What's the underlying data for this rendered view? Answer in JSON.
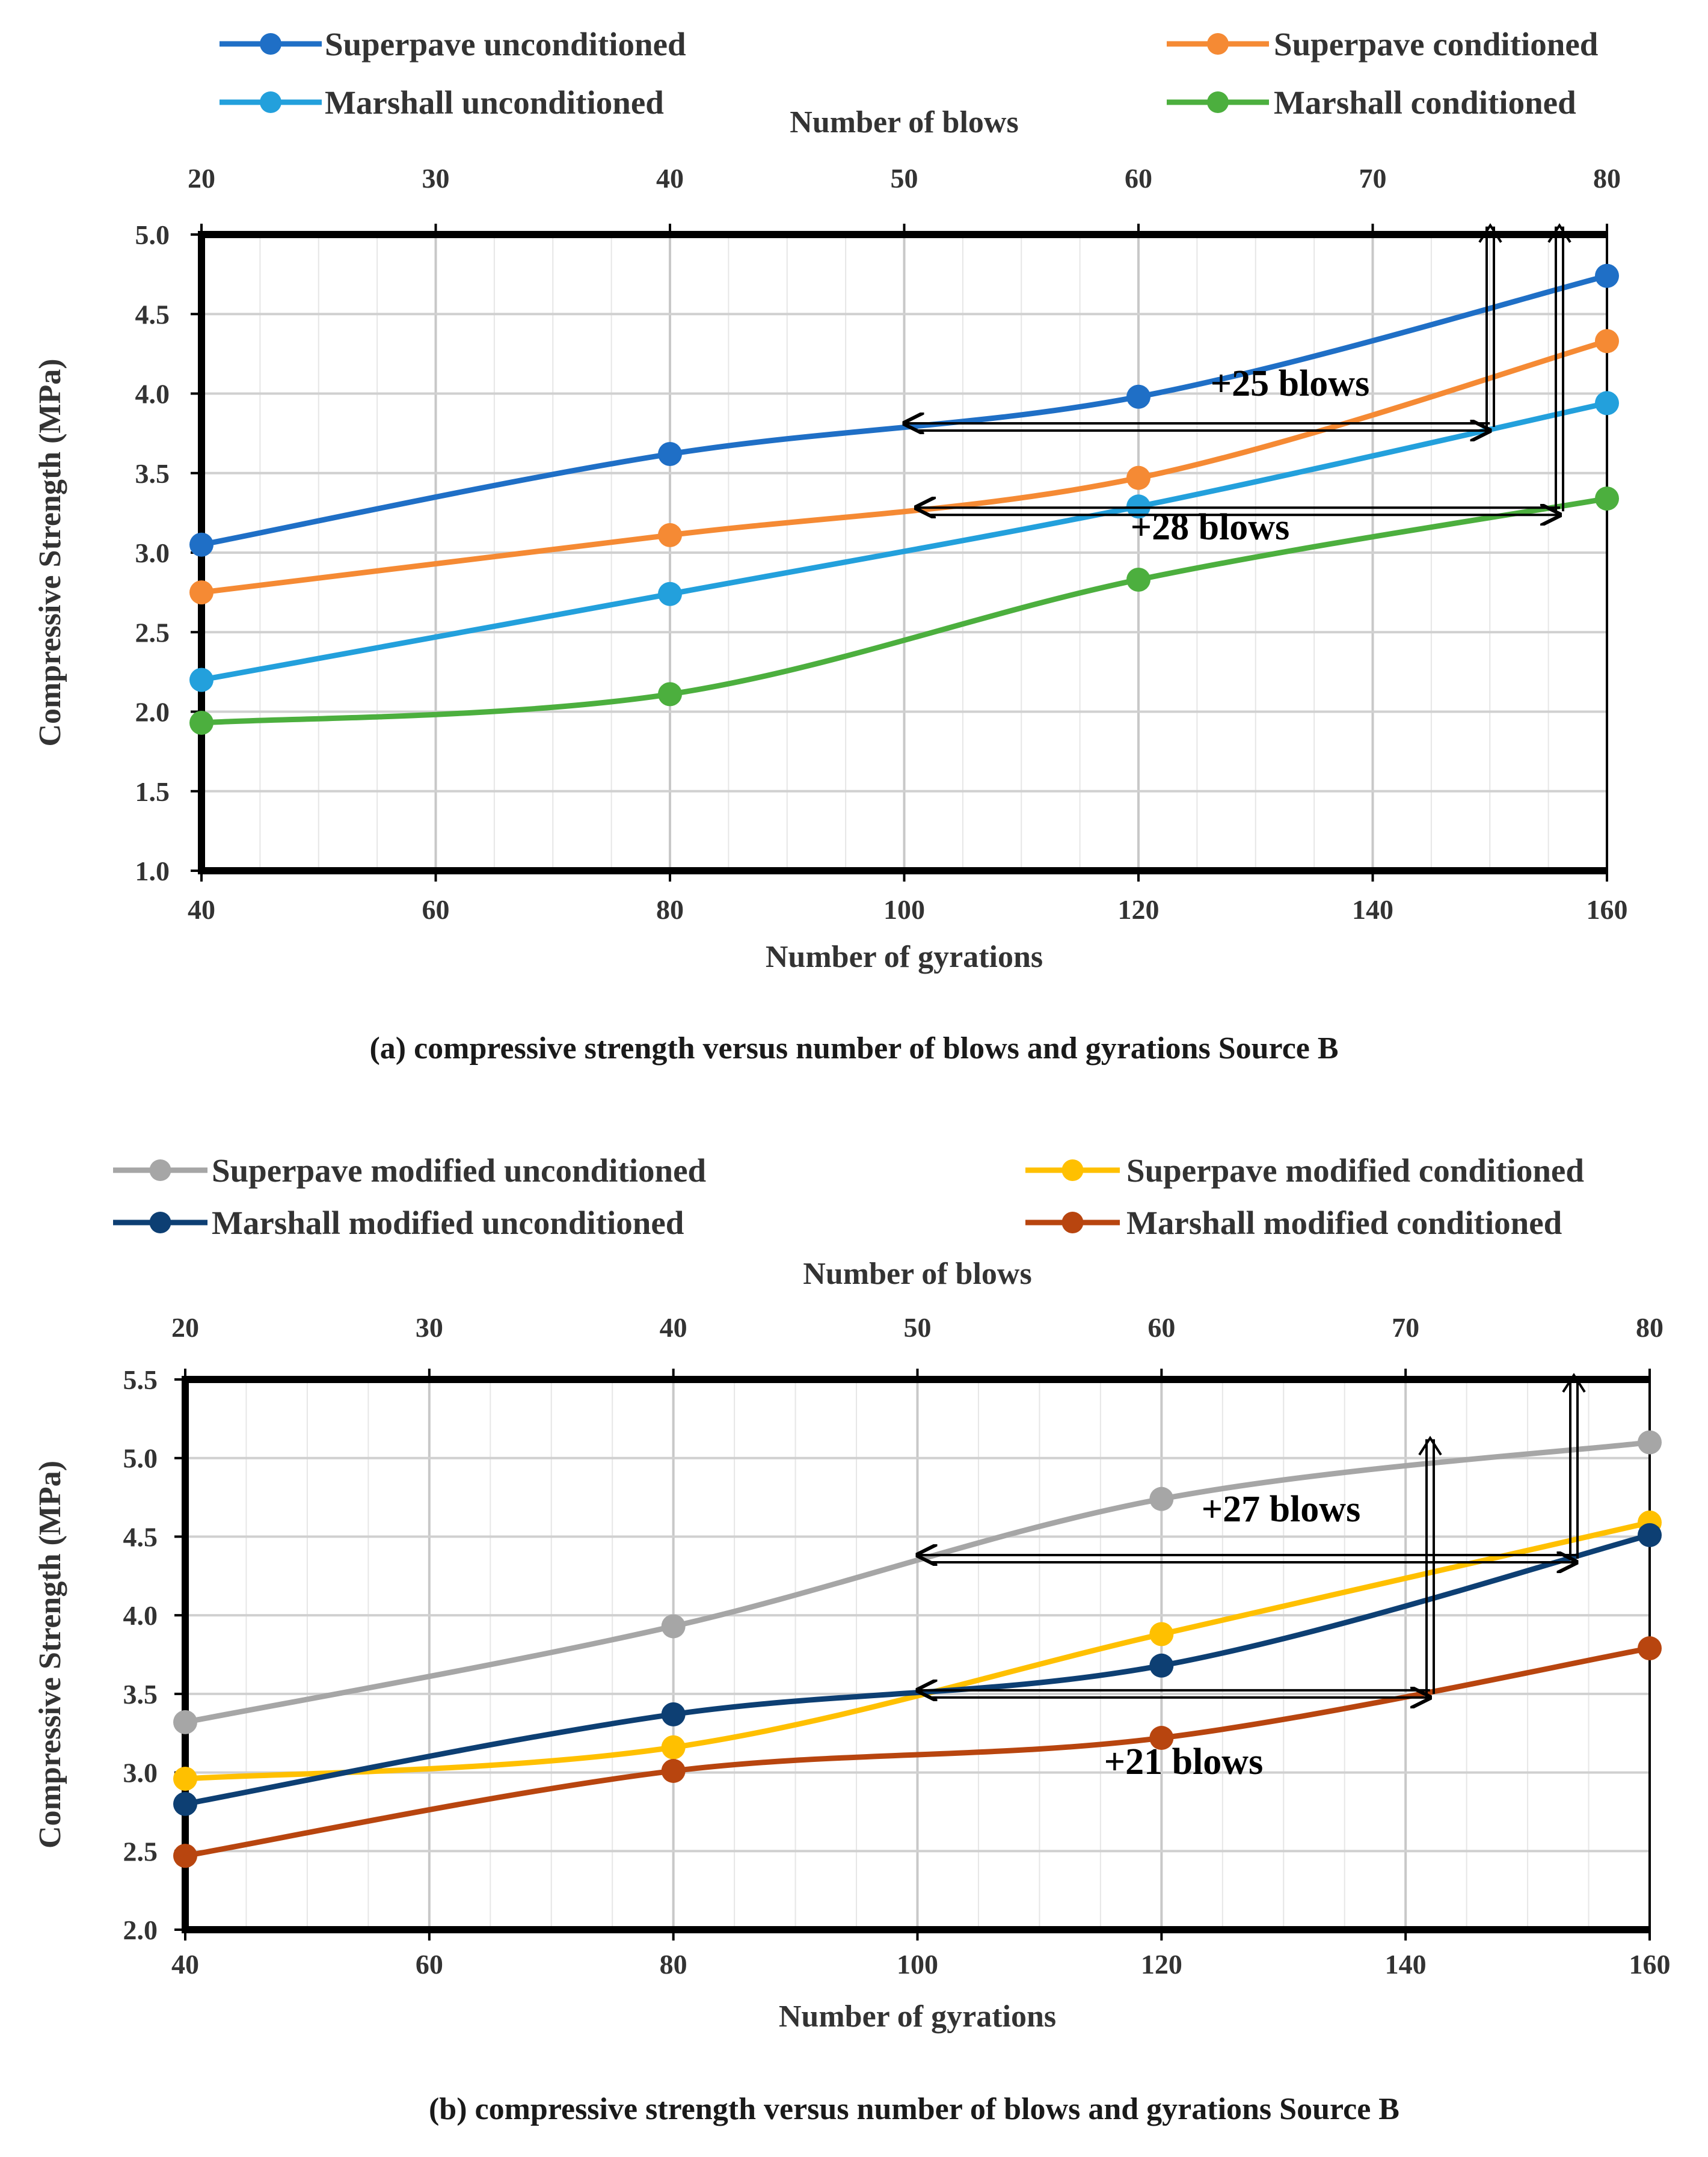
{
  "chart_data": [
    {
      "type": "line",
      "caption": "(a) compressive strength versus number of blows and gyrations Source B",
      "xlabel": "Number of gyrations",
      "x2label": "Number of blows",
      "ylabel": "Compressive Strength (MPa)",
      "xlim": [
        40,
        160
      ],
      "x2lim": [
        20,
        80
      ],
      "ylim": [
        1.0,
        5.0
      ],
      "xticks": [
        "40",
        "60",
        "80",
        "100",
        "120",
        "140",
        "160"
      ],
      "x2ticks": [
        "20",
        "30",
        "40",
        "50",
        "60",
        "70",
        "80"
      ],
      "yticks": [
        "1.0",
        "1.5",
        "2.0",
        "2.5",
        "3.0",
        "3.5",
        "4.0",
        "4.5",
        "5.0"
      ],
      "legend_position": "top",
      "grid": true,
      "x": [
        40,
        80,
        120,
        160
      ],
      "series": [
        {
          "name": "Superpave unconditioned",
          "color": "#1f6fc6",
          "values": [
            3.05,
            3.62,
            3.98,
            4.74
          ]
        },
        {
          "name": "Superpave conditioned",
          "color": "#f58a34",
          "values": [
            2.75,
            3.11,
            3.47,
            4.33
          ]
        },
        {
          "name": "Marshall unconditioned",
          "color": "#23a0dc",
          "values": [
            2.2,
            2.74,
            3.29,
            3.94
          ]
        },
        {
          "name": "Marshall conditioned",
          "color": "#4caf3e",
          "values": [
            1.93,
            2.11,
            2.83,
            3.34
          ]
        }
      ],
      "annotations": [
        {
          "text": "+25 blows",
          "from_x": 100,
          "to_x": 150,
          "y": 3.79
        },
        {
          "text": "+28 blows",
          "from_x": 101,
          "to_x": 156,
          "y": 3.26
        }
      ]
    },
    {
      "type": "line",
      "caption": "(b) compressive strength versus number of blows and gyrations Source B",
      "xlabel": "Number of gyrations",
      "x2label": "Number of blows",
      "ylabel": "Compressive Strength (MPa)",
      "xlim": [
        40,
        160
      ],
      "x2lim": [
        20,
        80
      ],
      "ylim": [
        2.0,
        5.5
      ],
      "xticks": [
        "40",
        "60",
        "80",
        "100",
        "120",
        "140",
        "160"
      ],
      "x2ticks": [
        "20",
        "30",
        "40",
        "50",
        "60",
        "70",
        "80"
      ],
      "yticks": [
        "2.0",
        "2.5",
        "3.0",
        "3.5",
        "4.0",
        "4.5",
        "5.0",
        "5.5"
      ],
      "legend_position": "top",
      "grid": true,
      "x": [
        40,
        80,
        120,
        160
      ],
      "series": [
        {
          "name": "Superpave modified unconditioned",
          "color": "#a6a6a6",
          "values": [
            3.32,
            3.93,
            4.74,
            5.1
          ]
        },
        {
          "name": "Superpave modified conditioned",
          "color": "#ffc000",
          "values": [
            2.96,
            3.16,
            3.88,
            4.59
          ]
        },
        {
          "name": "Marshall modified unconditioned",
          "color": "#0d3f73",
          "values": [
            2.8,
            3.37,
            3.68,
            4.51
          ]
        },
        {
          "name": "Marshall modified conditioned",
          "color": "#b8450f",
          "values": [
            2.47,
            3.01,
            3.22,
            3.79
          ]
        }
      ],
      "annotations": [
        {
          "text": "+27 blows",
          "from_x": 100,
          "to_x": 154,
          "y": 4.36
        },
        {
          "text": "+21 blows",
          "from_x": 100,
          "to_x": 142,
          "y": 3.5
        }
      ]
    }
  ]
}
